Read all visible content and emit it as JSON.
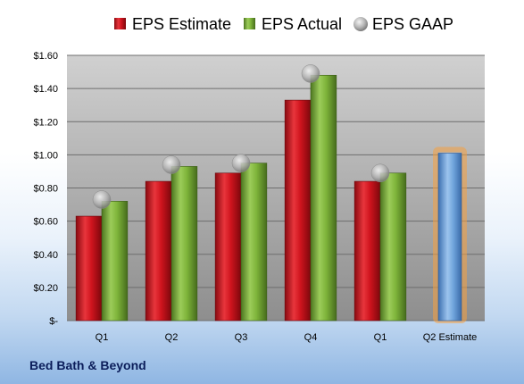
{
  "footer": {
    "company": "Bed Bath & Beyond"
  },
  "chart_data": {
    "type": "bar",
    "categories": [
      "Q1",
      "Q2",
      "Q3",
      "Q4",
      "Q1",
      "Q2 Estimate"
    ],
    "series": [
      {
        "name": "EPS Estimate",
        "values": [
          0.63,
          0.84,
          0.89,
          1.33,
          0.84,
          null
        ],
        "color": "#d0141e"
      },
      {
        "name": "EPS Actual",
        "values": [
          0.72,
          0.93,
          0.95,
          1.48,
          0.89,
          null
        ],
        "color": "#7eb43a"
      },
      {
        "name": "EPS GAAP",
        "type": "scatter",
        "values": [
          0.73,
          0.94,
          0.95,
          1.49,
          0.89,
          null
        ],
        "color": "#a8a8a8"
      }
    ],
    "highlight": {
      "category": "Q2 Estimate",
      "value": 1.01,
      "color": "#6fa4dc",
      "glow": "#f5a040"
    },
    "yticks": [
      "$-",
      "$0.20",
      "$0.40",
      "$0.60",
      "$0.80",
      "$1.00",
      "$1.20",
      "$1.40",
      "$1.60"
    ],
    "ylim": [
      0,
      1.6
    ],
    "grid": true,
    "legend_position": "top"
  }
}
